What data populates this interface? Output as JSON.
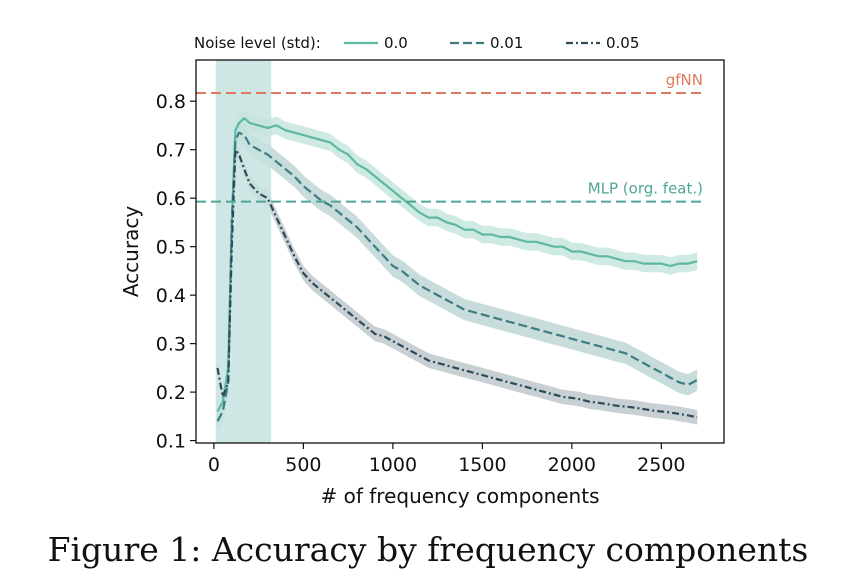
{
  "caption": "Figure 1: Accuracy by frequency components",
  "chart_data": {
    "type": "line",
    "title": "",
    "xlabel": "# of frequency components",
    "ylabel": "Accuracy",
    "xlim": [
      -100,
      2850
    ],
    "ylim": [
      0.095,
      0.885
    ],
    "xticks": [
      0,
      500,
      1000,
      1500,
      2000,
      2500
    ],
    "yticks": [
      0.1,
      0.2,
      0.3,
      0.4,
      0.5,
      0.6,
      0.7,
      0.8
    ],
    "legend": {
      "title": "Noise level (std):",
      "placement": "top",
      "entries": [
        "0.0",
        "0.01",
        "0.05"
      ]
    },
    "highlight_band": {
      "x_start": 10,
      "x_end": 320,
      "color": "#c5e3df"
    },
    "reference_lines": [
      {
        "label": "gfNN",
        "y": 0.817,
        "color": "#e07a5f"
      },
      {
        "label": "MLP (org. feat.)",
        "y": 0.593,
        "color": "#4fa597"
      }
    ],
    "series": [
      {
        "name": "0.0",
        "style": "solid",
        "color": "#5fb8a3",
        "band_color": "#a7d8cb",
        "x": [
          20,
          50,
          80,
          100,
          120,
          140,
          170,
          200,
          250,
          300,
          350,
          400,
          450,
          500,
          550,
          600,
          650,
          700,
          750,
          800,
          850,
          900,
          950,
          1000,
          1050,
          1100,
          1150,
          1200,
          1250,
          1300,
          1350,
          1400,
          1450,
          1500,
          1550,
          1600,
          1650,
          1700,
          1750,
          1800,
          1850,
          1900,
          1950,
          2000,
          2050,
          2100,
          2150,
          2200,
          2250,
          2300,
          2350,
          2400,
          2450,
          2500,
          2550,
          2600,
          2650,
          2700
        ],
        "values": [
          0.16,
          0.18,
          0.25,
          0.55,
          0.74,
          0.755,
          0.765,
          0.755,
          0.75,
          0.745,
          0.75,
          0.74,
          0.735,
          0.73,
          0.725,
          0.72,
          0.715,
          0.7,
          0.69,
          0.67,
          0.66,
          0.645,
          0.63,
          0.615,
          0.6,
          0.585,
          0.57,
          0.56,
          0.56,
          0.55,
          0.545,
          0.535,
          0.535,
          0.525,
          0.525,
          0.52,
          0.52,
          0.515,
          0.51,
          0.51,
          0.505,
          0.5,
          0.5,
          0.49,
          0.49,
          0.485,
          0.48,
          0.48,
          0.475,
          0.47,
          0.47,
          0.465,
          0.465,
          0.465,
          0.46,
          0.465,
          0.465,
          0.47
        ],
        "band": 0.018
      },
      {
        "name": "0.01",
        "style": "dashed",
        "color": "#3c7d82",
        "band_color": "#9bbfbf",
        "x": [
          20,
          50,
          80,
          100,
          120,
          140,
          170,
          200,
          250,
          300,
          350,
          400,
          450,
          500,
          550,
          600,
          650,
          700,
          750,
          800,
          850,
          900,
          950,
          1000,
          1050,
          1100,
          1150,
          1200,
          1250,
          1300,
          1350,
          1400,
          1450,
          1500,
          1550,
          1600,
          1650,
          1700,
          1750,
          1800,
          1850,
          1900,
          1950,
          2000,
          2050,
          2100,
          2150,
          2200,
          2250,
          2300,
          2350,
          2400,
          2450,
          2500,
          2550,
          2600,
          2650,
          2700
        ],
        "values": [
          0.14,
          0.16,
          0.22,
          0.55,
          0.72,
          0.735,
          0.73,
          0.71,
          0.7,
          0.69,
          0.675,
          0.66,
          0.645,
          0.625,
          0.61,
          0.595,
          0.585,
          0.57,
          0.555,
          0.54,
          0.52,
          0.5,
          0.48,
          0.46,
          0.45,
          0.435,
          0.42,
          0.41,
          0.4,
          0.39,
          0.38,
          0.37,
          0.365,
          0.36,
          0.355,
          0.35,
          0.345,
          0.34,
          0.335,
          0.33,
          0.325,
          0.32,
          0.315,
          0.31,
          0.305,
          0.3,
          0.295,
          0.29,
          0.285,
          0.28,
          0.27,
          0.26,
          0.25,
          0.24,
          0.23,
          0.22,
          0.215,
          0.225
        ],
        "band": 0.022
      },
      {
        "name": "0.05",
        "style": "dashdot",
        "color": "#2c4a58",
        "band_color": "#9aa9b1",
        "x": [
          20,
          50,
          80,
          100,
          120,
          140,
          170,
          200,
          250,
          300,
          350,
          400,
          450,
          500,
          550,
          600,
          650,
          700,
          750,
          800,
          850,
          900,
          950,
          1000,
          1050,
          1100,
          1150,
          1200,
          1250,
          1300,
          1350,
          1400,
          1450,
          1500,
          1550,
          1600,
          1650,
          1700,
          1750,
          1800,
          1850,
          1900,
          1950,
          2000,
          2050,
          2100,
          2150,
          2200,
          2250,
          2300,
          2350,
          2400,
          2450,
          2500,
          2550,
          2600,
          2650,
          2700
        ],
        "values": [
          0.25,
          0.19,
          0.22,
          0.5,
          0.7,
          0.69,
          0.66,
          0.63,
          0.61,
          0.6,
          0.56,
          0.52,
          0.48,
          0.445,
          0.425,
          0.41,
          0.395,
          0.38,
          0.365,
          0.35,
          0.335,
          0.32,
          0.315,
          0.305,
          0.295,
          0.285,
          0.275,
          0.265,
          0.26,
          0.255,
          0.25,
          0.245,
          0.24,
          0.235,
          0.23,
          0.225,
          0.22,
          0.215,
          0.21,
          0.205,
          0.2,
          0.195,
          0.19,
          0.188,
          0.185,
          0.18,
          0.178,
          0.175,
          0.172,
          0.17,
          0.168,
          0.165,
          0.162,
          0.16,
          0.158,
          0.155,
          0.152,
          0.148
        ],
        "band": 0.015
      }
    ]
  }
}
